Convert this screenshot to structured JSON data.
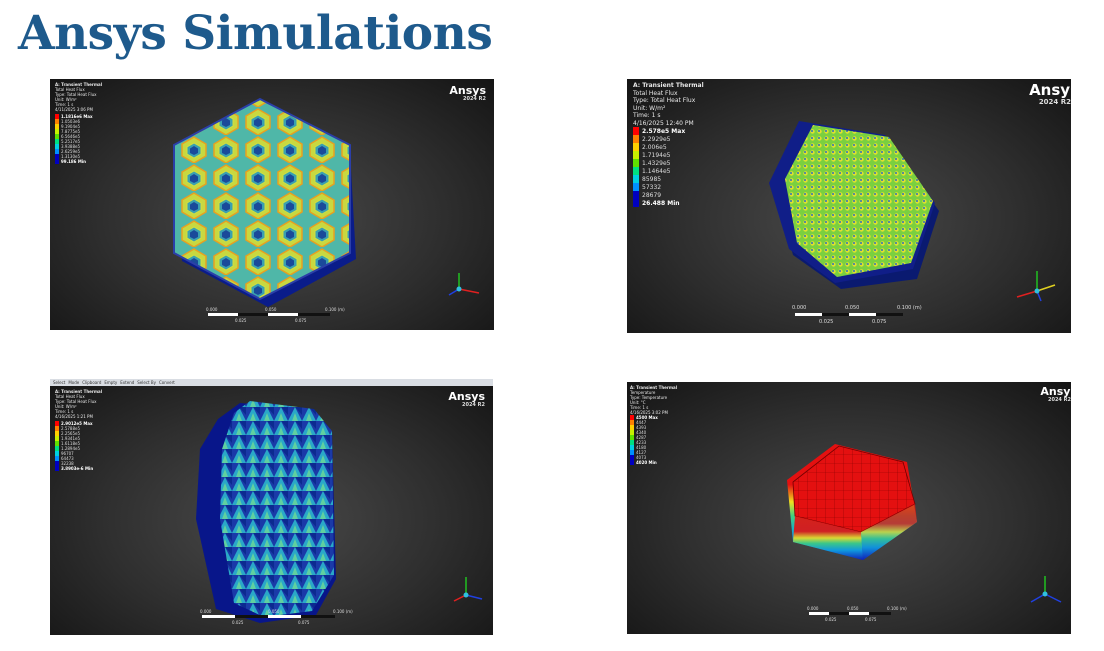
{
  "page": {
    "title": "Ansys Simulations"
  },
  "legend_colors": [
    "#ff0000",
    "#ff8000",
    "#ffd000",
    "#c8f000",
    "#60e000",
    "#00e080",
    "#00d0e0",
    "#0090ff",
    "#0000c0"
  ],
  "brand": {
    "name": "Ansys",
    "version": "2024 R2"
  },
  "panels": [
    {
      "info": [
        "A: Transient Thermal",
        "Total Heat Flux",
        "Type: Total Heat Flux",
        "Unit: W/m²",
        "Time: 1 s",
        "4/11/2025 3:06 PM"
      ],
      "legend": [
        "1.1816e6 Max",
        "1.0503e6",
        "9.1904e5",
        "7.8775e5",
        "6.5646e5",
        "5.2517e5",
        "3.9388e5",
        "2.6259e5",
        "1.3130e5",
        "99.186 Min"
      ],
      "scale_top": [
        "0.000",
        "0.050",
        "0.100 (m)"
      ],
      "scale_bottom": [
        "0.025",
        "0.075"
      ]
    },
    {
      "info": [
        "A: Transient Thermal",
        "Total Heat Flux",
        "Type: Total Heat Flux",
        "Unit: W/m²",
        "Time: 1 s",
        "4/16/2025 12:40 PM"
      ],
      "legend": [
        "2.578e5 Max",
        "2.2929e5",
        "2.006e5",
        "1.7194e5",
        "1.4329e5",
        "1.1464e5",
        "85985",
        "57332",
        "28679",
        "26.488 Min"
      ],
      "scale_top": [
        "0.000",
        "0.050",
        "0.100 (m)"
      ],
      "scale_bottom": [
        "0.025",
        "0.075"
      ]
    },
    {
      "info": [
        "A: Transient Thermal",
        "Total Heat Flux",
        "Type: Total Heat Flux",
        "Unit: W/m²",
        "Time: 1 s",
        "4/16/2025 1:21 PM"
      ],
      "legend": [
        "2.9012e5 Max",
        "2.5788e5",
        "2.2565e5",
        "1.9341e5",
        "1.6118e5",
        "1.2894e5",
        "96707",
        "64473",
        "32238",
        "3.8903e-6 Min"
      ],
      "scale_top": [
        "0.000",
        "0.050",
        "0.100 (m)"
      ],
      "scale_bottom": [
        "0.025",
        "0.075"
      ],
      "toolbar": [
        "Select",
        "Mode",
        "Clipboard",
        "Empty",
        "Extend",
        "Select By",
        "Convert"
      ]
    },
    {
      "info": [
        "A: Transient Thermal",
        "Temperature",
        "Type: Temperature",
        "Unit: °C",
        "Time: 1 s",
        "4/16/2025 3:02 PM"
      ],
      "legend": [
        "4500 Max",
        "4447",
        "4393",
        "4340",
        "4287",
        "4233",
        "4180",
        "4127",
        "4073",
        "4020 Min"
      ],
      "scale_top": [
        "0.000",
        "0.050",
        "0.100 (m)"
      ],
      "scale_bottom": [
        "0.025",
        "0.075"
      ]
    }
  ]
}
